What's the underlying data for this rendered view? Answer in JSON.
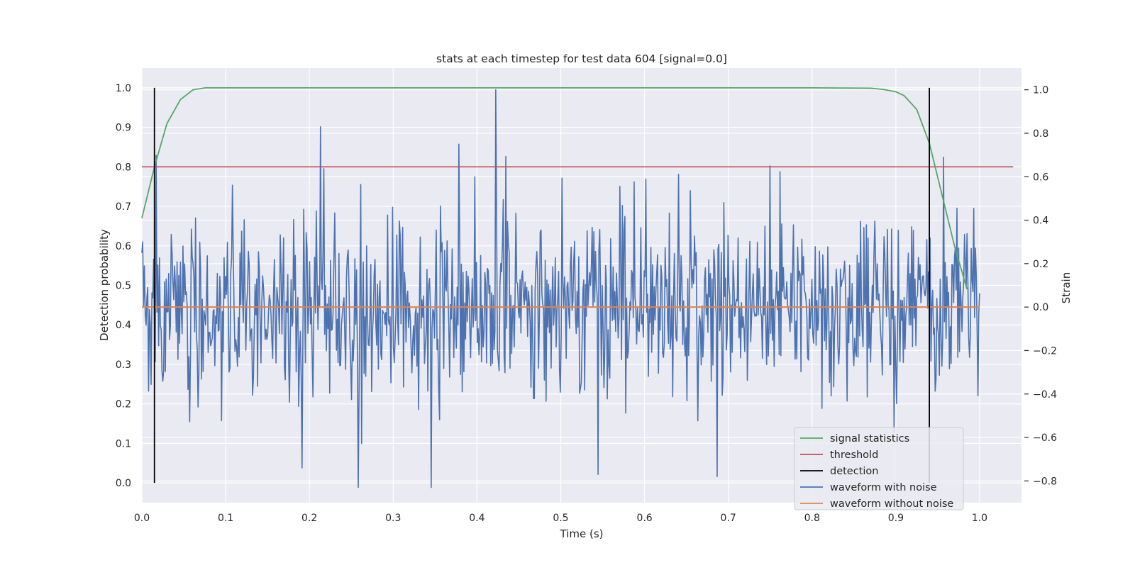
{
  "chart_data": {
    "type": "line",
    "title": "stats at each timestep for test data 604 [signal=0.0]",
    "xlabel": "Time (s)",
    "ylabel": "Detection probability",
    "ylabel_right": "Strain",
    "xlim": [
      0.0,
      1.05
    ],
    "ylim": [
      -0.05,
      1.05
    ],
    "ylim_right": [
      -0.9,
      1.1
    ],
    "x_ticks": [
      "0.0",
      "0.1",
      "0.2",
      "0.3",
      "0.4",
      "0.5",
      "0.6",
      "0.7",
      "0.8",
      "0.9",
      "1.0"
    ],
    "y_ticks": [
      "0.0",
      "0.1",
      "0.2",
      "0.3",
      "0.4",
      "0.5",
      "0.6",
      "0.7",
      "0.8",
      "0.9",
      "1.0"
    ],
    "y_ticks_right": [
      "−0.8",
      "−0.6",
      "−0.4",
      "−0.2",
      "0.0",
      "0.2",
      "0.4",
      "0.6",
      "0.8",
      "1.0"
    ],
    "grid": true,
    "legend_position": "bottom-right",
    "series": [
      {
        "name": "signal statistics",
        "color": "#55a868",
        "axis": "left",
        "x": [
          0.0,
          0.015,
          0.03,
          0.046,
          0.061,
          0.076,
          0.1,
          0.2,
          0.4,
          0.6,
          0.8,
          0.87,
          0.885,
          0.9,
          0.91,
          0.925,
          0.94,
          0.955,
          0.97,
          0.985
        ],
        "y": [
          0.67,
          0.8,
          0.91,
          0.97,
          0.995,
          1.0,
          1.0,
          1.0,
          1.0,
          1.0,
          1.0,
          0.999,
          0.996,
          0.99,
          0.98,
          0.945,
          0.86,
          0.73,
          0.6,
          0.49
        ]
      },
      {
        "name": "threshold",
        "color": "#c44e52",
        "axis": "left",
        "x": [
          0.0,
          1.04
        ],
        "y": [
          0.8,
          0.8
        ]
      },
      {
        "name": "detection",
        "color": "#000000",
        "axis": "left",
        "vlines": [
          0.015,
          0.94
        ],
        "y_range": [
          0.0,
          1.0
        ]
      },
      {
        "name": "waveform with noise",
        "color": "#4c72b0",
        "axis": "right",
        "x_range": [
          0.0,
          1.0
        ],
        "n_points": 1000,
        "std": 0.22,
        "y_min": -0.83,
        "y_max": 1.0
      },
      {
        "name": "waveform without noise",
        "color": "#dd8452",
        "axis": "right",
        "x": [
          0.0,
          1.0
        ],
        "y": [
          0.0,
          0.0
        ]
      }
    ]
  }
}
